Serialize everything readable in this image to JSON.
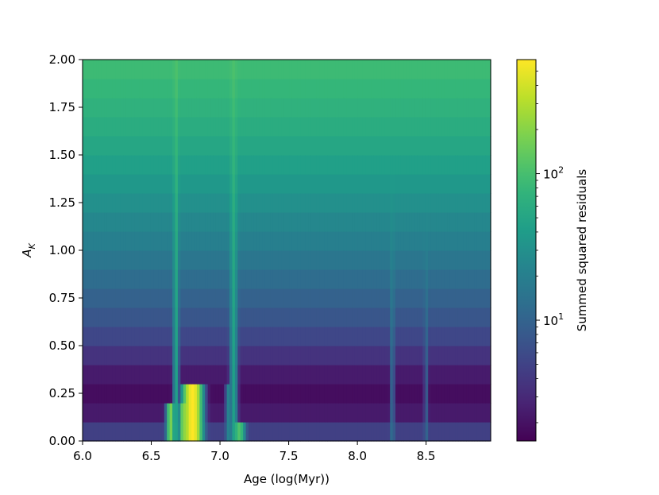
{
  "chart_data": {
    "type": "heatmap",
    "title": "",
    "xlabel": "Age (log(Myr))",
    "ylabel_main": "A",
    "ylabel_sub": "K",
    "xlim": [
      6.0,
      8.97
    ],
    "ylim": [
      0.0,
      2.0
    ],
    "xticks": [
      6.0,
      6.5,
      7.0,
      7.5,
      8.0,
      8.5
    ],
    "xtick_labels": [
      "6.0",
      "6.5",
      "7.0",
      "7.5",
      "8.0",
      "8.5"
    ],
    "yticks": [
      0.0,
      0.25,
      0.5,
      0.75,
      1.0,
      1.25,
      1.5,
      1.75,
      2.0
    ],
    "ytick_labels": [
      "0.00",
      "0.25",
      "0.50",
      "0.75",
      "1.00",
      "1.25",
      "1.50",
      "1.75",
      "2.00"
    ],
    "grid": false,
    "colormap": "viridis",
    "colorbar": {
      "label": "Summed squared residuals",
      "scale": "log",
      "range": [
        1.5,
        600
      ],
      "major_ticks": [
        {
          "value": 10,
          "base": "10",
          "exp": "1"
        },
        {
          "value": 100,
          "base": "10",
          "exp": "2"
        }
      ],
      "minor_ticks": [
        2,
        3,
        4,
        5,
        6,
        7,
        8,
        9,
        20,
        30,
        40,
        50,
        60,
        70,
        80,
        90,
        200,
        300,
        400,
        500
      ]
    },
    "rows": {
      "a_k": [
        0.0,
        0.1,
        0.2,
        0.3,
        0.4,
        0.5,
        0.6,
        0.7,
        0.8,
        0.9,
        1.0,
        1.1,
        1.2,
        1.3,
        1.4,
        1.5,
        1.6,
        1.7,
        1.8,
        1.9,
        2.0
      ],
      "base_residual": [
        8.0,
        2.8,
        1.9,
        1.8,
        3.0,
        4.5,
        6.5,
        8.5,
        11,
        14,
        18,
        22,
        27,
        33,
        40,
        48,
        56,
        65,
        75,
        85,
        95
      ]
    },
    "features": [
      {
        "type": "band",
        "age": 6.8,
        "width": 0.045,
        "a_k_max": 0.28,
        "peak": 600
      },
      {
        "type": "band",
        "age": 6.74,
        "width": 0.025,
        "a_k_max": 0.22,
        "peak": 220
      },
      {
        "type": "band",
        "age": 6.64,
        "width": 0.02,
        "a_k_max": 0.22,
        "peak": 180
      },
      {
        "type": "band",
        "age": 7.14,
        "width": 0.03,
        "a_k_max": 0.15,
        "peak": 110
      },
      {
        "type": "band",
        "age": 7.06,
        "width": 0.015,
        "a_k_max": 0.3,
        "peak": 22
      },
      {
        "type": "band",
        "age": 8.255,
        "width": 0.012,
        "a_k_max": 2.0,
        "peak": 40
      },
      {
        "type": "band",
        "age": 8.5,
        "width": 0.012,
        "a_k_max": 2.0,
        "peak": 25
      },
      {
        "type": "band",
        "age": 6.68,
        "width": 0.015,
        "a_k_max": 2.0,
        "peak": 150
      },
      {
        "type": "band",
        "age": 7.1,
        "width": 0.02,
        "a_k_max": 2.0,
        "peak": 140
      }
    ]
  }
}
